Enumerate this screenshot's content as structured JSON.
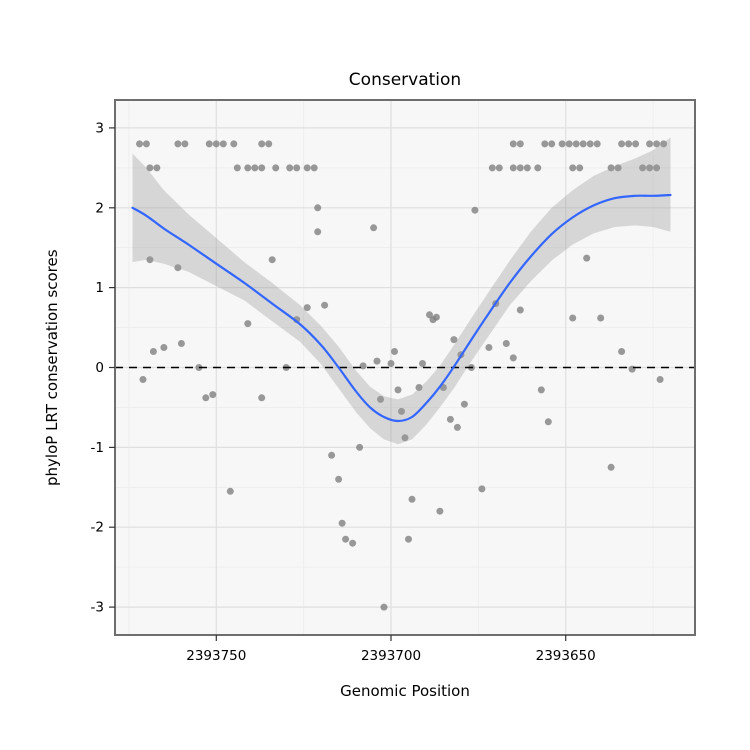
{
  "chart_data": {
    "type": "scatter",
    "title": "Conservation",
    "xlabel": "Genomic Position",
    "ylabel": "phyloP LRT conservation scores",
    "x_axis_reversed": true,
    "x_display_range": [
      2393779,
      2393613
    ],
    "ylim": [
      -3.35,
      3.35
    ],
    "x_ticks": [
      2393750,
      2393700,
      2393650
    ],
    "y_ticks": [
      -3,
      -2,
      -1,
      0,
      1,
      2,
      3
    ],
    "x_minor_ticks": [
      2393775,
      2393725,
      2393675,
      2393625
    ],
    "y_minor_ticks": [
      -2.5,
      -1.5,
      -0.5,
      0.5,
      1.5,
      2.5
    ],
    "reference_line_y": 0,
    "grid": true,
    "legend": "none",
    "colors": {
      "panel_bg": "#F7F7F7",
      "grid_major": "#DFDFDF",
      "grid_minor": "#ECECEC",
      "border": "#6E6E6E",
      "point": "#7F7F7F",
      "point_opacity": 0.8,
      "smooth": "#3366FF",
      "band": "#999999",
      "band_opacity": 0.35,
      "reference_line": "#000000",
      "text": "#000000"
    },
    "points": [
      [
        2393772,
        2.8
      ],
      [
        2393770,
        2.8
      ],
      [
        2393761,
        2.8
      ],
      [
        2393759,
        2.8
      ],
      [
        2393752,
        2.8
      ],
      [
        2393750,
        2.8
      ],
      [
        2393748,
        2.8
      ],
      [
        2393745,
        2.8
      ],
      [
        2393737,
        2.8
      ],
      [
        2393735,
        2.8
      ],
      [
        2393665,
        2.8
      ],
      [
        2393663,
        2.8
      ],
      [
        2393656,
        2.8
      ],
      [
        2393654,
        2.8
      ],
      [
        2393651,
        2.8
      ],
      [
        2393649,
        2.8
      ],
      [
        2393647,
        2.8
      ],
      [
        2393645,
        2.8
      ],
      [
        2393643,
        2.8
      ],
      [
        2393641,
        2.8
      ],
      [
        2393634,
        2.8
      ],
      [
        2393632,
        2.8
      ],
      [
        2393630,
        2.8
      ],
      [
        2393626,
        2.8
      ],
      [
        2393624,
        2.8
      ],
      [
        2393622,
        2.8
      ],
      [
        2393769,
        2.5
      ],
      [
        2393767,
        2.5
      ],
      [
        2393744,
        2.5
      ],
      [
        2393741,
        2.5
      ],
      [
        2393739,
        2.5
      ],
      [
        2393737,
        2.5
      ],
      [
        2393733,
        2.5
      ],
      [
        2393729,
        2.5
      ],
      [
        2393727,
        2.5
      ],
      [
        2393724,
        2.5
      ],
      [
        2393722,
        2.5
      ],
      [
        2393671,
        2.5
      ],
      [
        2393669,
        2.5
      ],
      [
        2393665,
        2.5
      ],
      [
        2393663,
        2.5
      ],
      [
        2393661,
        2.5
      ],
      [
        2393658,
        2.5
      ],
      [
        2393648,
        2.5
      ],
      [
        2393646,
        2.5
      ],
      [
        2393637,
        2.5
      ],
      [
        2393635,
        2.5
      ],
      [
        2393628,
        2.5
      ],
      [
        2393626,
        2.5
      ],
      [
        2393624,
        2.5
      ],
      [
        2393771,
        -0.15
      ],
      [
        2393768,
        0.2
      ],
      [
        2393765,
        0.25
      ],
      [
        2393769,
        1.35
      ],
      [
        2393761,
        1.25
      ],
      [
        2393760,
        0.3
      ],
      [
        2393755,
        0
      ],
      [
        2393753,
        -0.38
      ],
      [
        2393751,
        -0.34
      ],
      [
        2393746,
        -1.55
      ],
      [
        2393741,
        0.55
      ],
      [
        2393737,
        -0.38
      ],
      [
        2393734,
        1.35
      ],
      [
        2393730,
        0
      ],
      [
        2393727,
        0.6
      ],
      [
        2393724,
        0.75
      ],
      [
        2393721,
        2.0
      ],
      [
        2393721,
        1.7
      ],
      [
        2393719,
        0.78
      ],
      [
        2393717,
        -1.1
      ],
      [
        2393715,
        -1.4
      ],
      [
        2393714,
        -1.95
      ],
      [
        2393713,
        -2.15
      ],
      [
        2393711,
        -2.2
      ],
      [
        2393709,
        -1.0
      ],
      [
        2393708,
        0.02
      ],
      [
        2393705,
        1.75
      ],
      [
        2393704,
        0.08
      ],
      [
        2393703,
        -0.4
      ],
      [
        2393702,
        -3.0
      ],
      [
        2393700,
        0.05
      ],
      [
        2393699,
        0.2
      ],
      [
        2393698,
        -0.28
      ],
      [
        2393697,
        -0.55
      ],
      [
        2393696,
        -0.88
      ],
      [
        2393695,
        -2.15
      ],
      [
        2393694,
        -1.65
      ],
      [
        2393692,
        -0.25
      ],
      [
        2393691,
        0.05
      ],
      [
        2393689,
        0.66
      ],
      [
        2393688,
        0.6
      ],
      [
        2393687,
        0.63
      ],
      [
        2393686,
        -1.8
      ],
      [
        2393685,
        -0.25
      ],
      [
        2393683,
        -0.65
      ],
      [
        2393682,
        0.35
      ],
      [
        2393681,
        -0.75
      ],
      [
        2393680,
        0.16
      ],
      [
        2393679,
        -0.46
      ],
      [
        2393677,
        0
      ],
      [
        2393676,
        1.97
      ],
      [
        2393674,
        -1.52
      ],
      [
        2393672,
        0.25
      ],
      [
        2393670,
        0.8
      ],
      [
        2393667,
        0.3
      ],
      [
        2393665,
        0.12
      ],
      [
        2393663,
        0.72
      ],
      [
        2393657,
        -0.28
      ],
      [
        2393655,
        -0.68
      ],
      [
        2393648,
        0.62
      ],
      [
        2393644,
        1.37
      ],
      [
        2393640,
        0.62
      ],
      [
        2393637,
        -1.25
      ],
      [
        2393634,
        0.2
      ],
      [
        2393631,
        -0.02
      ],
      [
        2393623,
        -0.15
      ]
    ],
    "smooth_line": [
      [
        2393774,
        2.0
      ],
      [
        2393770,
        1.9
      ],
      [
        2393765,
        1.74
      ],
      [
        2393758,
        1.54
      ],
      [
        2393750,
        1.3
      ],
      [
        2393742,
        1.06
      ],
      [
        2393734,
        0.8
      ],
      [
        2393726,
        0.54
      ],
      [
        2393720,
        0.28
      ],
      [
        2393715,
        0
      ],
      [
        2393710,
        -0.3
      ],
      [
        2393706,
        -0.5
      ],
      [
        2393702,
        -0.62
      ],
      [
        2393698,
        -0.67
      ],
      [
        2393694,
        -0.62
      ],
      [
        2393690,
        -0.45
      ],
      [
        2393686,
        -0.24
      ],
      [
        2393682,
        0.01
      ],
      [
        2393677,
        0.35
      ],
      [
        2393672,
        0.68
      ],
      [
        2393666,
        1.06
      ],
      [
        2393660,
        1.39
      ],
      [
        2393654,
        1.67
      ],
      [
        2393648,
        1.88
      ],
      [
        2393642,
        2.03
      ],
      [
        2393636,
        2.12
      ],
      [
        2393630,
        2.15
      ],
      [
        2393625,
        2.15
      ],
      [
        2393620,
        2.16
      ]
    ],
    "confidence_band": [
      [
        2393774,
        1.32,
        2.68
      ],
      [
        2393770,
        1.35,
        2.5
      ],
      [
        2393765,
        1.3,
        2.22
      ],
      [
        2393758,
        1.2,
        1.92
      ],
      [
        2393750,
        1.02,
        1.62
      ],
      [
        2393742,
        0.84,
        1.32
      ],
      [
        2393734,
        0.58,
        1.06
      ],
      [
        2393726,
        0.32,
        0.78
      ],
      [
        2393720,
        0.04,
        0.52
      ],
      [
        2393715,
        -0.26,
        0.26
      ],
      [
        2393710,
        -0.56,
        -0.04
      ],
      [
        2393706,
        -0.76,
        -0.24
      ],
      [
        2393702,
        -0.9,
        -0.36
      ],
      [
        2393698,
        -0.96,
        -0.4
      ],
      [
        2393694,
        -0.9,
        -0.34
      ],
      [
        2393690,
        -0.72,
        -0.18
      ],
      [
        2393686,
        -0.5,
        0.02
      ],
      [
        2393682,
        -0.26,
        0.28
      ],
      [
        2393677,
        0.08,
        0.62
      ],
      [
        2393672,
        0.4,
        0.95
      ],
      [
        2393666,
        0.78,
        1.34
      ],
      [
        2393660,
        1.08,
        1.7
      ],
      [
        2393654,
        1.34,
        2.0
      ],
      [
        2393648,
        1.54,
        2.22
      ],
      [
        2393642,
        1.68,
        2.4
      ],
      [
        2393636,
        1.76,
        2.52
      ],
      [
        2393630,
        1.78,
        2.62
      ],
      [
        2393625,
        1.76,
        2.72
      ],
      [
        2393620,
        1.7,
        2.88
      ]
    ]
  }
}
